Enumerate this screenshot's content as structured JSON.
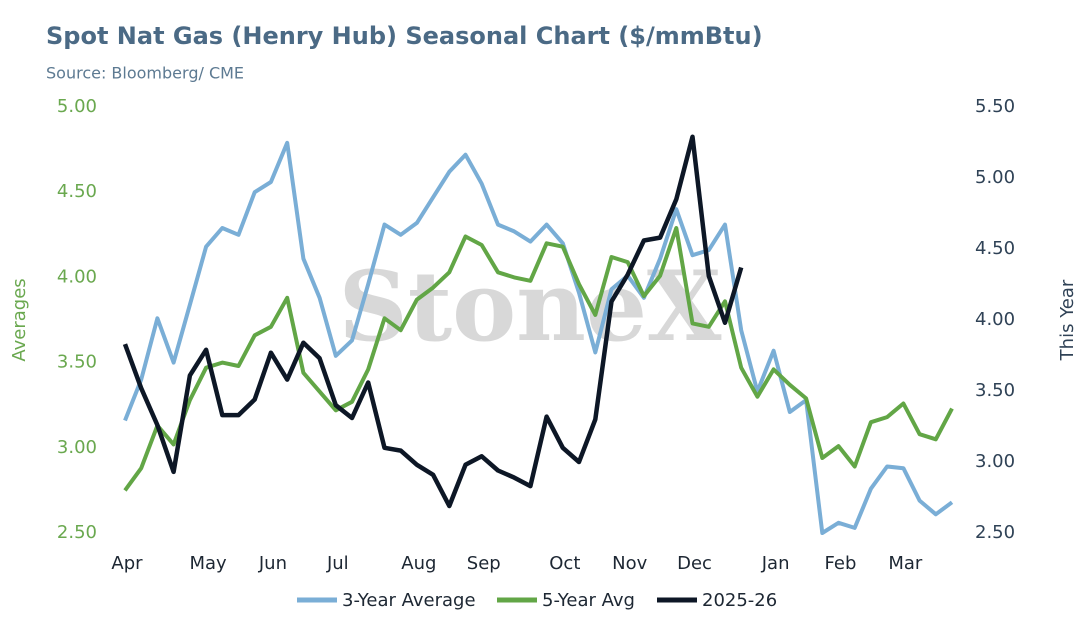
{
  "chart_data": {
    "type": "line",
    "title": "Spot Nat Gas (Henry Hub) Seasonal Chart ($/mmBtu)",
    "subtitle": "Source: Bloomberg/ CME",
    "watermark": "StoneX",
    "y_label": "Averages",
    "y2_label": "This Year",
    "x": [
      0,
      1,
      2,
      3,
      4,
      5,
      6,
      7,
      8,
      9,
      10,
      11,
      12,
      13,
      14,
      15,
      16,
      17,
      18,
      19,
      20,
      21,
      22,
      23,
      24,
      25,
      26,
      27,
      28,
      29,
      30,
      31,
      32,
      33,
      34,
      35,
      36,
      37,
      38,
      39,
      40,
      41,
      42,
      43,
      44,
      45,
      46,
      47,
      48,
      49,
      50,
      51
    ],
    "xlim": [
      0,
      51
    ],
    "xticks": [
      {
        "value": 0,
        "label": "Apr"
      },
      {
        "value": 5,
        "label": "May"
      },
      {
        "value": 9,
        "label": "Jun"
      },
      {
        "value": 13,
        "label": "Jul"
      },
      {
        "value": 18,
        "label": "Aug"
      },
      {
        "value": 22,
        "label": "Sep"
      },
      {
        "value": 27,
        "label": "Oct"
      },
      {
        "value": 31,
        "label": "Nov"
      },
      {
        "value": 35,
        "label": "Dec"
      },
      {
        "value": 40,
        "label": "Jan"
      },
      {
        "value": 44,
        "label": "Feb"
      },
      {
        "value": 48,
        "label": "Mar"
      }
    ],
    "ylim": [
      2.5,
      5.0
    ],
    "yticks": [
      {
        "value": 2.5,
        "label": "2.50"
      },
      {
        "value": 3.0,
        "label": "3.00"
      },
      {
        "value": 3.5,
        "label": "3.50"
      },
      {
        "value": 4.0,
        "label": "4.00"
      },
      {
        "value": 4.5,
        "label": "4.50"
      },
      {
        "value": 5.0,
        "label": "5.00"
      }
    ],
    "y2lim": [
      2.5,
      5.5
    ],
    "y2ticks": [
      {
        "value": 2.5,
        "label": "2.50"
      },
      {
        "value": 3.0,
        "label": "3.00"
      },
      {
        "value": 3.5,
        "label": "3.50"
      },
      {
        "value": 4.0,
        "label": "4.00"
      },
      {
        "value": 4.5,
        "label": "4.50"
      },
      {
        "value": 5.0,
        "label": "5.00"
      },
      {
        "value": 5.5,
        "label": "5.50"
      }
    ],
    "series": [
      {
        "name": "3-Year Average",
        "color": "#7aaed6",
        "values": [
          3.16,
          3.4,
          3.76,
          3.5,
          3.84,
          4.18,
          4.29,
          4.25,
          4.5,
          4.56,
          4.79,
          4.11,
          3.88,
          3.54,
          3.63,
          3.96,
          4.31,
          4.25,
          4.32,
          4.47,
          4.62,
          4.72,
          4.55,
          4.31,
          4.27,
          4.21,
          4.31,
          4.2,
          3.91,
          3.56,
          3.93,
          4.01,
          3.88,
          4.11,
          4.4,
          4.13,
          4.16,
          4.31,
          3.69,
          3.33,
          3.57,
          3.21,
          3.28,
          2.5,
          2.56,
          2.53,
          2.76,
          2.89,
          2.88,
          2.69,
          2.61,
          2.68
        ]
      },
      {
        "name": "5-Year Avg",
        "color": "#62a646",
        "values": [
          2.75,
          2.88,
          3.13,
          3.02,
          3.28,
          3.47,
          3.5,
          3.48,
          3.66,
          3.71,
          3.88,
          3.44,
          3.33,
          3.22,
          3.27,
          3.46,
          3.76,
          3.69,
          3.87,
          3.94,
          4.03,
          4.24,
          4.19,
          4.03,
          4.0,
          3.98,
          4.2,
          4.18,
          3.96,
          3.78,
          4.12,
          4.09,
          3.89,
          4.01,
          4.29,
          3.73,
          3.71,
          3.86,
          3.47,
          3.3,
          3.46,
          3.37,
          3.29,
          2.94,
          3.01,
          2.89,
          3.15,
          3.18,
          3.26,
          3.08,
          3.05,
          3.23
        ]
      },
      {
        "name": "2025-26",
        "color": "#0d1726",
        "axis": "y2",
        "values": [
          3.83,
          3.52,
          3.26,
          2.93,
          3.61,
          3.79,
          3.33,
          3.33,
          3.44,
          3.77,
          3.58,
          3.84,
          3.73,
          3.4,
          3.31,
          3.56,
          3.1,
          3.08,
          2.98,
          2.91,
          2.69,
          2.98,
          3.04,
          2.94,
          2.89,
          2.83,
          3.32,
          3.1,
          3.0,
          3.3,
          4.13,
          4.32,
          4.56,
          4.58,
          4.85,
          5.29,
          4.31,
          3.98,
          4.37,
          null,
          null,
          null,
          null,
          null,
          null,
          null,
          null,
          null,
          null,
          null,
          null,
          null
        ]
      }
    ],
    "grid": false,
    "legend": "bottom"
  }
}
